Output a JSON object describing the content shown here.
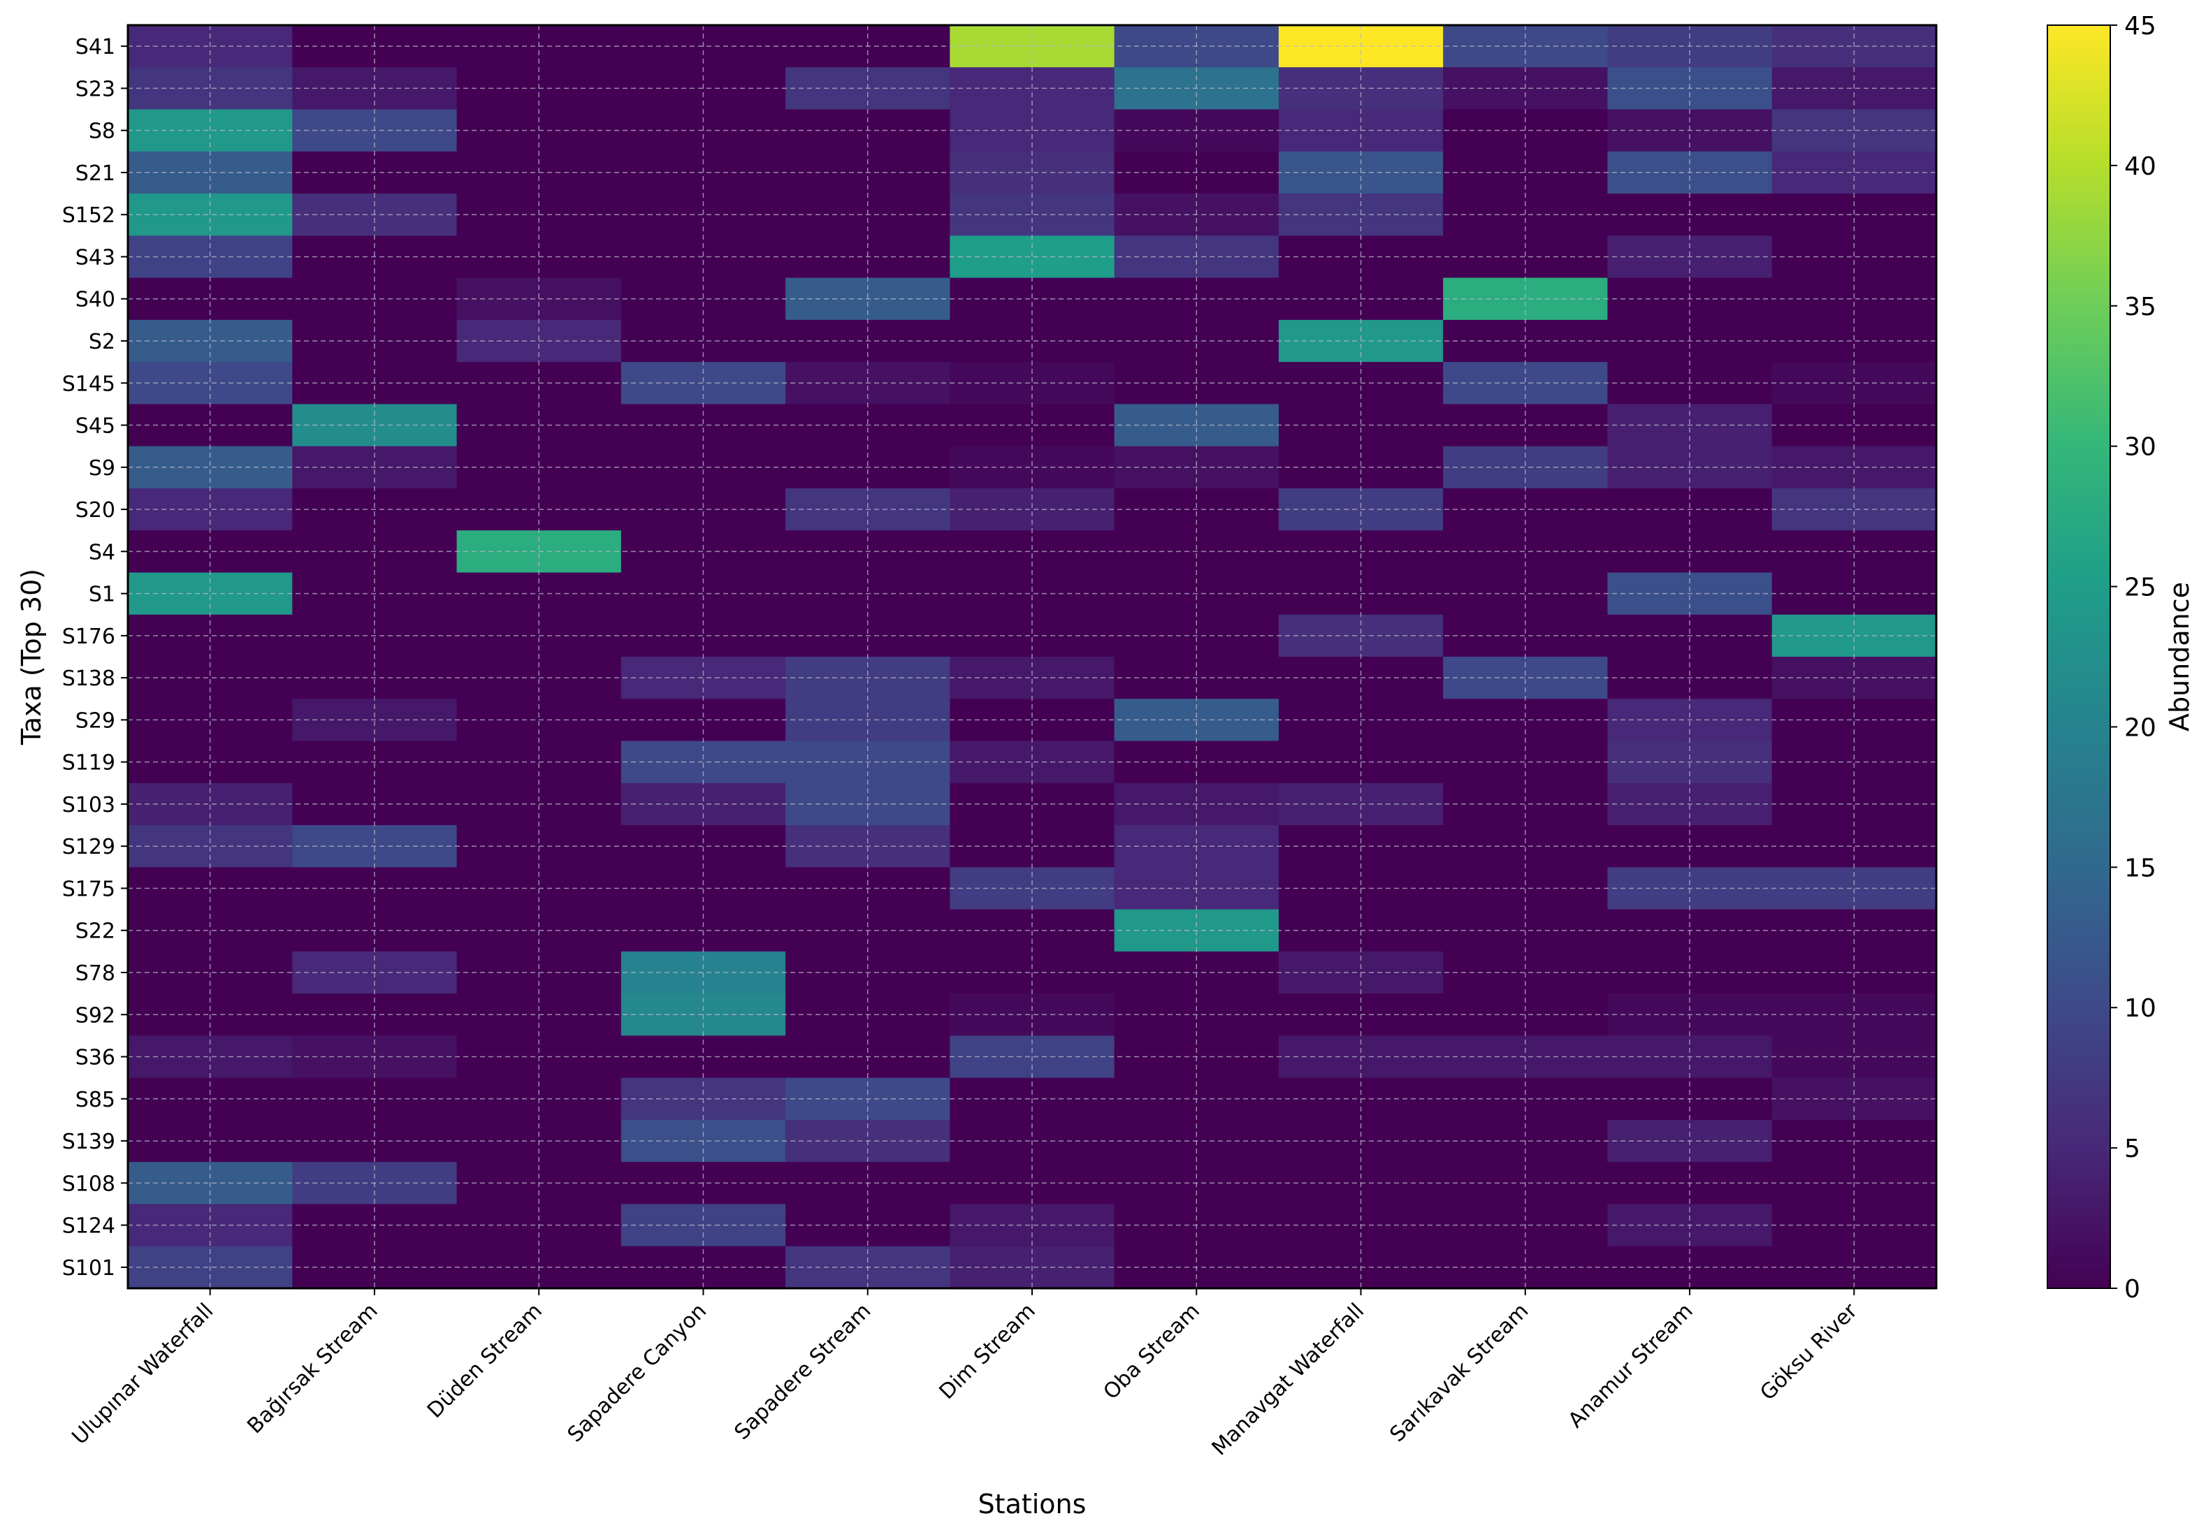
{
  "chart_data": {
    "type": "heatmap",
    "xlabel": "Stations",
    "ylabel": "Taxa (Top 30)",
    "colorbar_label": "Abundance",
    "colorbar_range": [
      0,
      45
    ],
    "colorbar_ticks": [
      "0",
      "5",
      "10",
      "15",
      "20",
      "25",
      "30",
      "35",
      "40",
      "45"
    ],
    "colormap": "viridis",
    "grid": true,
    "stations": [
      "Ulupınar Waterfall",
      "Bağırsak Stream",
      "Düden Stream",
      "Sapadere Canyon",
      "Sapadere Stream",
      "Dim Stream",
      "Oba Stream",
      "Manavgat Waterfall",
      "Sarıkavak Stream",
      "Anamur Stream",
      "Göksu River"
    ],
    "taxa": [
      "S41",
      "S23",
      "S8",
      "S21",
      "S152",
      "S43",
      "S40",
      "S2",
      "S145",
      "S45",
      "S9",
      "S20",
      "S4",
      "S1",
      "S176",
      "S138",
      "S29",
      "S119",
      "S103",
      "S129",
      "S175",
      "S22",
      "S78",
      "S92",
      "S36",
      "S85",
      "S139",
      "S108",
      "S124",
      "S101"
    ],
    "values": [
      [
        5,
        0,
        0,
        0,
        0,
        39,
        10,
        45,
        10,
        8,
        6
      ],
      [
        7,
        3,
        0,
        0,
        7,
        5,
        17,
        6,
        2,
        11,
        3
      ],
      [
        24,
        10,
        0,
        0,
        0,
        5,
        1,
        5,
        0,
        2,
        7
      ],
      [
        13,
        0,
        0,
        0,
        0,
        6,
        0,
        12,
        0,
        11,
        5
      ],
      [
        24,
        6,
        0,
        0,
        0,
        7,
        2,
        7,
        0,
        0,
        0
      ],
      [
        9,
        0,
        0,
        0,
        0,
        25,
        7,
        0,
        0,
        4,
        0
      ],
      [
        0,
        0,
        2,
        0,
        13,
        0,
        0,
        0,
        28,
        0,
        0
      ],
      [
        13,
        0,
        5,
        0,
        0,
        0,
        0,
        24,
        0,
        0,
        0
      ],
      [
        10,
        0,
        0,
        10,
        2,
        1,
        0,
        0,
        10,
        0,
        1
      ],
      [
        0,
        22,
        0,
        0,
        0,
        0,
        13,
        0,
        0,
        4,
        0
      ],
      [
        13,
        3,
        0,
        0,
        0,
        1,
        2,
        0,
        8,
        4,
        3
      ],
      [
        5,
        0,
        0,
        0,
        7,
        4,
        0,
        8,
        0,
        0,
        7
      ],
      [
        0,
        0,
        28,
        0,
        0,
        0,
        0,
        0,
        0,
        0,
        0
      ],
      [
        24,
        0,
        0,
        0,
        0,
        0,
        0,
        0,
        0,
        11,
        0
      ],
      [
        0,
        0,
        0,
        0,
        0,
        0,
        0,
        6,
        0,
        0,
        24
      ],
      [
        0,
        0,
        0,
        5,
        8,
        3,
        0,
        0,
        10,
        0,
        2
      ],
      [
        0,
        3,
        0,
        0,
        8,
        0,
        13,
        0,
        0,
        5,
        0
      ],
      [
        0,
        0,
        0,
        10,
        10,
        3,
        0,
        0,
        0,
        6,
        0
      ],
      [
        4,
        0,
        0,
        4,
        10,
        0,
        3,
        4,
        0,
        4,
        0
      ],
      [
        7,
        10,
        0,
        0,
        6,
        0,
        5,
        0,
        0,
        0,
        0
      ],
      [
        0,
        0,
        0,
        0,
        0,
        8,
        5,
        0,
        0,
        8,
        8
      ],
      [
        0,
        0,
        0,
        0,
        0,
        0,
        24,
        0,
        0,
        0,
        0
      ],
      [
        0,
        5,
        0,
        20,
        0,
        0,
        0,
        3,
        0,
        0,
        0
      ],
      [
        0,
        0,
        0,
        21,
        0,
        1,
        0,
        0,
        0,
        1,
        1
      ],
      [
        3,
        2,
        0,
        0,
        0,
        9,
        0,
        3,
        3,
        3,
        1
      ],
      [
        0,
        0,
        0,
        7,
        10,
        0,
        0,
        0,
        0,
        0,
        2
      ],
      [
        0,
        0,
        0,
        11,
        6,
        0,
        0,
        0,
        0,
        4,
        0
      ],
      [
        13,
        8,
        0,
        0,
        0,
        0,
        0,
        0,
        0,
        0,
        0
      ],
      [
        5,
        0,
        0,
        9,
        0,
        3,
        0,
        0,
        0,
        3,
        0
      ],
      [
        9,
        0,
        0,
        0,
        7,
        4,
        0,
        0,
        0,
        0,
        0
      ]
    ]
  }
}
